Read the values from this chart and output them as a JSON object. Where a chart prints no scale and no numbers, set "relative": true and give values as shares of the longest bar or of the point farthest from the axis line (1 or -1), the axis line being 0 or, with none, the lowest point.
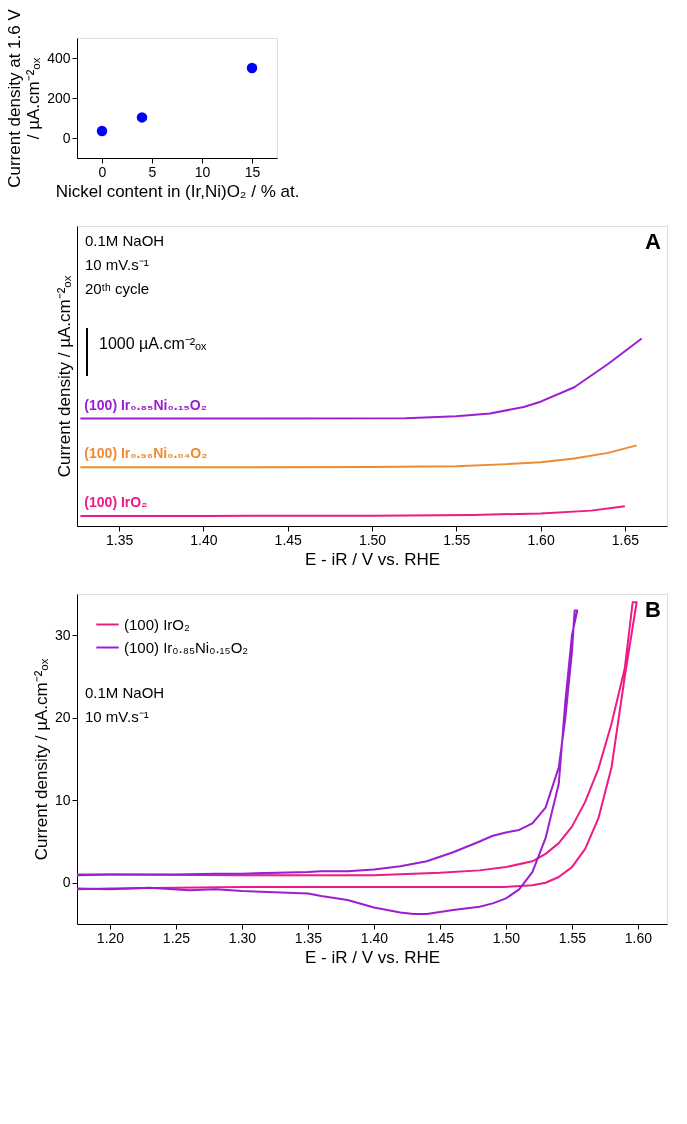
{
  "chart_data": [
    {
      "type": "scatter",
      "xlabel": "Nickel content in (Ir,Ni)O₂ / % at.",
      "ylabel": "Current density at 1.6 V\n/ µA.cm⁻²ₒₓ",
      "marker": "circle",
      "x": [
        0,
        4,
        15
      ],
      "values": [
        35,
        103,
        350
      ],
      "color": "#0000ff",
      "xlim": [
        -2.5,
        17.5
      ],
      "xticks": [
        0,
        5,
        10,
        15
      ],
      "ylim": [
        -100,
        500
      ],
      "yticks": [
        0,
        200,
        400
      ]
    },
    {
      "type": "line",
      "relative": true,
      "xlabel": "E - iR / V vs. RHE",
      "ylabel": "Current density / µA.cm⁻²ₒₓ",
      "annotations": [
        "0.1M NaOH",
        "10 mV.s⁻¹",
        "20ᵗʰ cycle",
        "1000 µA.cm⁻²ₒₓ",
        "A"
      ],
      "xlim": [
        1.325,
        1.675
      ],
      "xticks": [
        {
          "value": 1.35,
          "label": "1.35"
        },
        {
          "value": 1.4,
          "label": "1.40"
        },
        {
          "value": 1.45,
          "label": "1.45"
        },
        {
          "value": 1.5,
          "label": "1.50"
        },
        {
          "value": 1.55,
          "label": "1.55"
        },
        {
          "value": 1.6,
          "label": "1.60"
        },
        {
          "value": 1.65,
          "label": "1.65"
        }
      ],
      "series": [
        {
          "name": "(100) IrO₂",
          "color": "#ee1a85",
          "x": [
            1.327,
            1.4,
            1.5,
            1.56,
            1.6,
            1.63,
            1.65
          ],
          "values": [
            0.054,
            0.054,
            0.055,
            0.059,
            0.067,
            0.082,
            0.105
          ]
        },
        {
          "name": "(100) Ir₀.₉₆Ni₀.₀₄O₂",
          "color": "#f08a30",
          "x": [
            1.327,
            1.4,
            1.5,
            1.55,
            1.58,
            1.6,
            1.62,
            1.64,
            1.657
          ],
          "values": [
            0.313,
            0.313,
            0.315,
            0.319,
            0.33,
            0.34,
            0.36,
            0.39,
            0.43
          ]
        },
        {
          "name": "(100) Ir₀.₈₅Ni₀.₁₅O₂",
          "color": "#9b1fd0",
          "x": [
            1.327,
            1.4,
            1.52,
            1.55,
            1.57,
            1.59,
            1.6,
            1.62,
            1.64,
            1.66
          ],
          "values": [
            0.573,
            0.573,
            0.575,
            0.585,
            0.6,
            0.635,
            0.663,
            0.74,
            0.864,
            1.0
          ]
        }
      ]
    },
    {
      "type": "line",
      "xlabel": "E - iR / V vs. RHE",
      "ylabel": "Current density / µA.cm⁻²ₒₓ",
      "legend": "top left",
      "annotations": [
        "0.1M NaOH",
        "10 mV.s⁻¹",
        "B"
      ],
      "xlim": [
        1.175,
        1.622
      ],
      "xticks": [
        {
          "value": 1.2,
          "label": "1.20"
        },
        {
          "value": 1.25,
          "label": "1.25"
        },
        {
          "value": 1.3,
          "label": "1.30"
        },
        {
          "value": 1.35,
          "label": "1.35"
        },
        {
          "value": 1.4,
          "label": "1.40"
        },
        {
          "value": 1.45,
          "label": "1.45"
        },
        {
          "value": 1.5,
          "label": "1.50"
        },
        {
          "value": 1.55,
          "label": "1.55"
        },
        {
          "value": 1.6,
          "label": "1.60"
        }
      ],
      "ylim": [
        -5,
        35
      ],
      "yticks": [
        0,
        10,
        20,
        30
      ],
      "series": [
        {
          "name": "(100) IrO₂",
          "color": "#ee1a85",
          "x": [
            1.175,
            1.2,
            1.3,
            1.4,
            1.45,
            1.48,
            1.5,
            1.52,
            1.53,
            1.54,
            1.55,
            1.56,
            1.57,
            1.58,
            1.59,
            1.596,
            1.599,
            1.59,
            1.58,
            1.57,
            1.56,
            1.55,
            1.54,
            1.53,
            1.52,
            1.5,
            1.45,
            1.4,
            1.3,
            1.2,
            1.175
          ],
          "values": [
            1.0,
            1.0,
            0.9,
            0.9,
            1.2,
            1.5,
            1.9,
            2.6,
            3.5,
            4.8,
            6.8,
            9.8,
            13.8,
            19.3,
            26,
            34,
            34,
            25,
            14,
            7.8,
            4.1,
            1.9,
            0.7,
            0.0,
            -0.3,
            -0.5,
            -0.5,
            -0.5,
            -0.5,
            -0.7,
            -0.8
          ]
        },
        {
          "name": "(100) Ir₀.₈₅Ni₀.₁₅O₂",
          "color": "#9b1fd0",
          "x": [
            1.175,
            1.2,
            1.25,
            1.28,
            1.3,
            1.35,
            1.36,
            1.38,
            1.4,
            1.42,
            1.44,
            1.46,
            1.48,
            1.49,
            1.5,
            1.51,
            1.52,
            1.53,
            1.54,
            1.545,
            1.55,
            1.552,
            1.554,
            1.55,
            1.545,
            1.54,
            1.53,
            1.52,
            1.51,
            1.5,
            1.49,
            1.48,
            1.46,
            1.44,
            1.43,
            1.42,
            1.4,
            1.38,
            1.36,
            1.35,
            1.3,
            1.28,
            1.26,
            1.23,
            1.2,
            1.175
          ],
          "values": [
            0.9,
            1.0,
            1.0,
            1.1,
            1.1,
            1.3,
            1.4,
            1.4,
            1.6,
            2.0,
            2.6,
            3.7,
            5.0,
            5.7,
            6.1,
            6.4,
            7.2,
            9.1,
            14,
            20,
            28,
            33,
            33,
            30,
            22,
            12,
            5.4,
            1.3,
            -0.8,
            -1.9,
            -2.5,
            -2.9,
            -3.3,
            -3.8,
            -3.8,
            -3.6,
            -3.0,
            -2.1,
            -1.6,
            -1.3,
            -1.0,
            -0.8,
            -0.9,
            -0.6,
            -0.8,
            -0.7
          ]
        }
      ]
    }
  ]
}
